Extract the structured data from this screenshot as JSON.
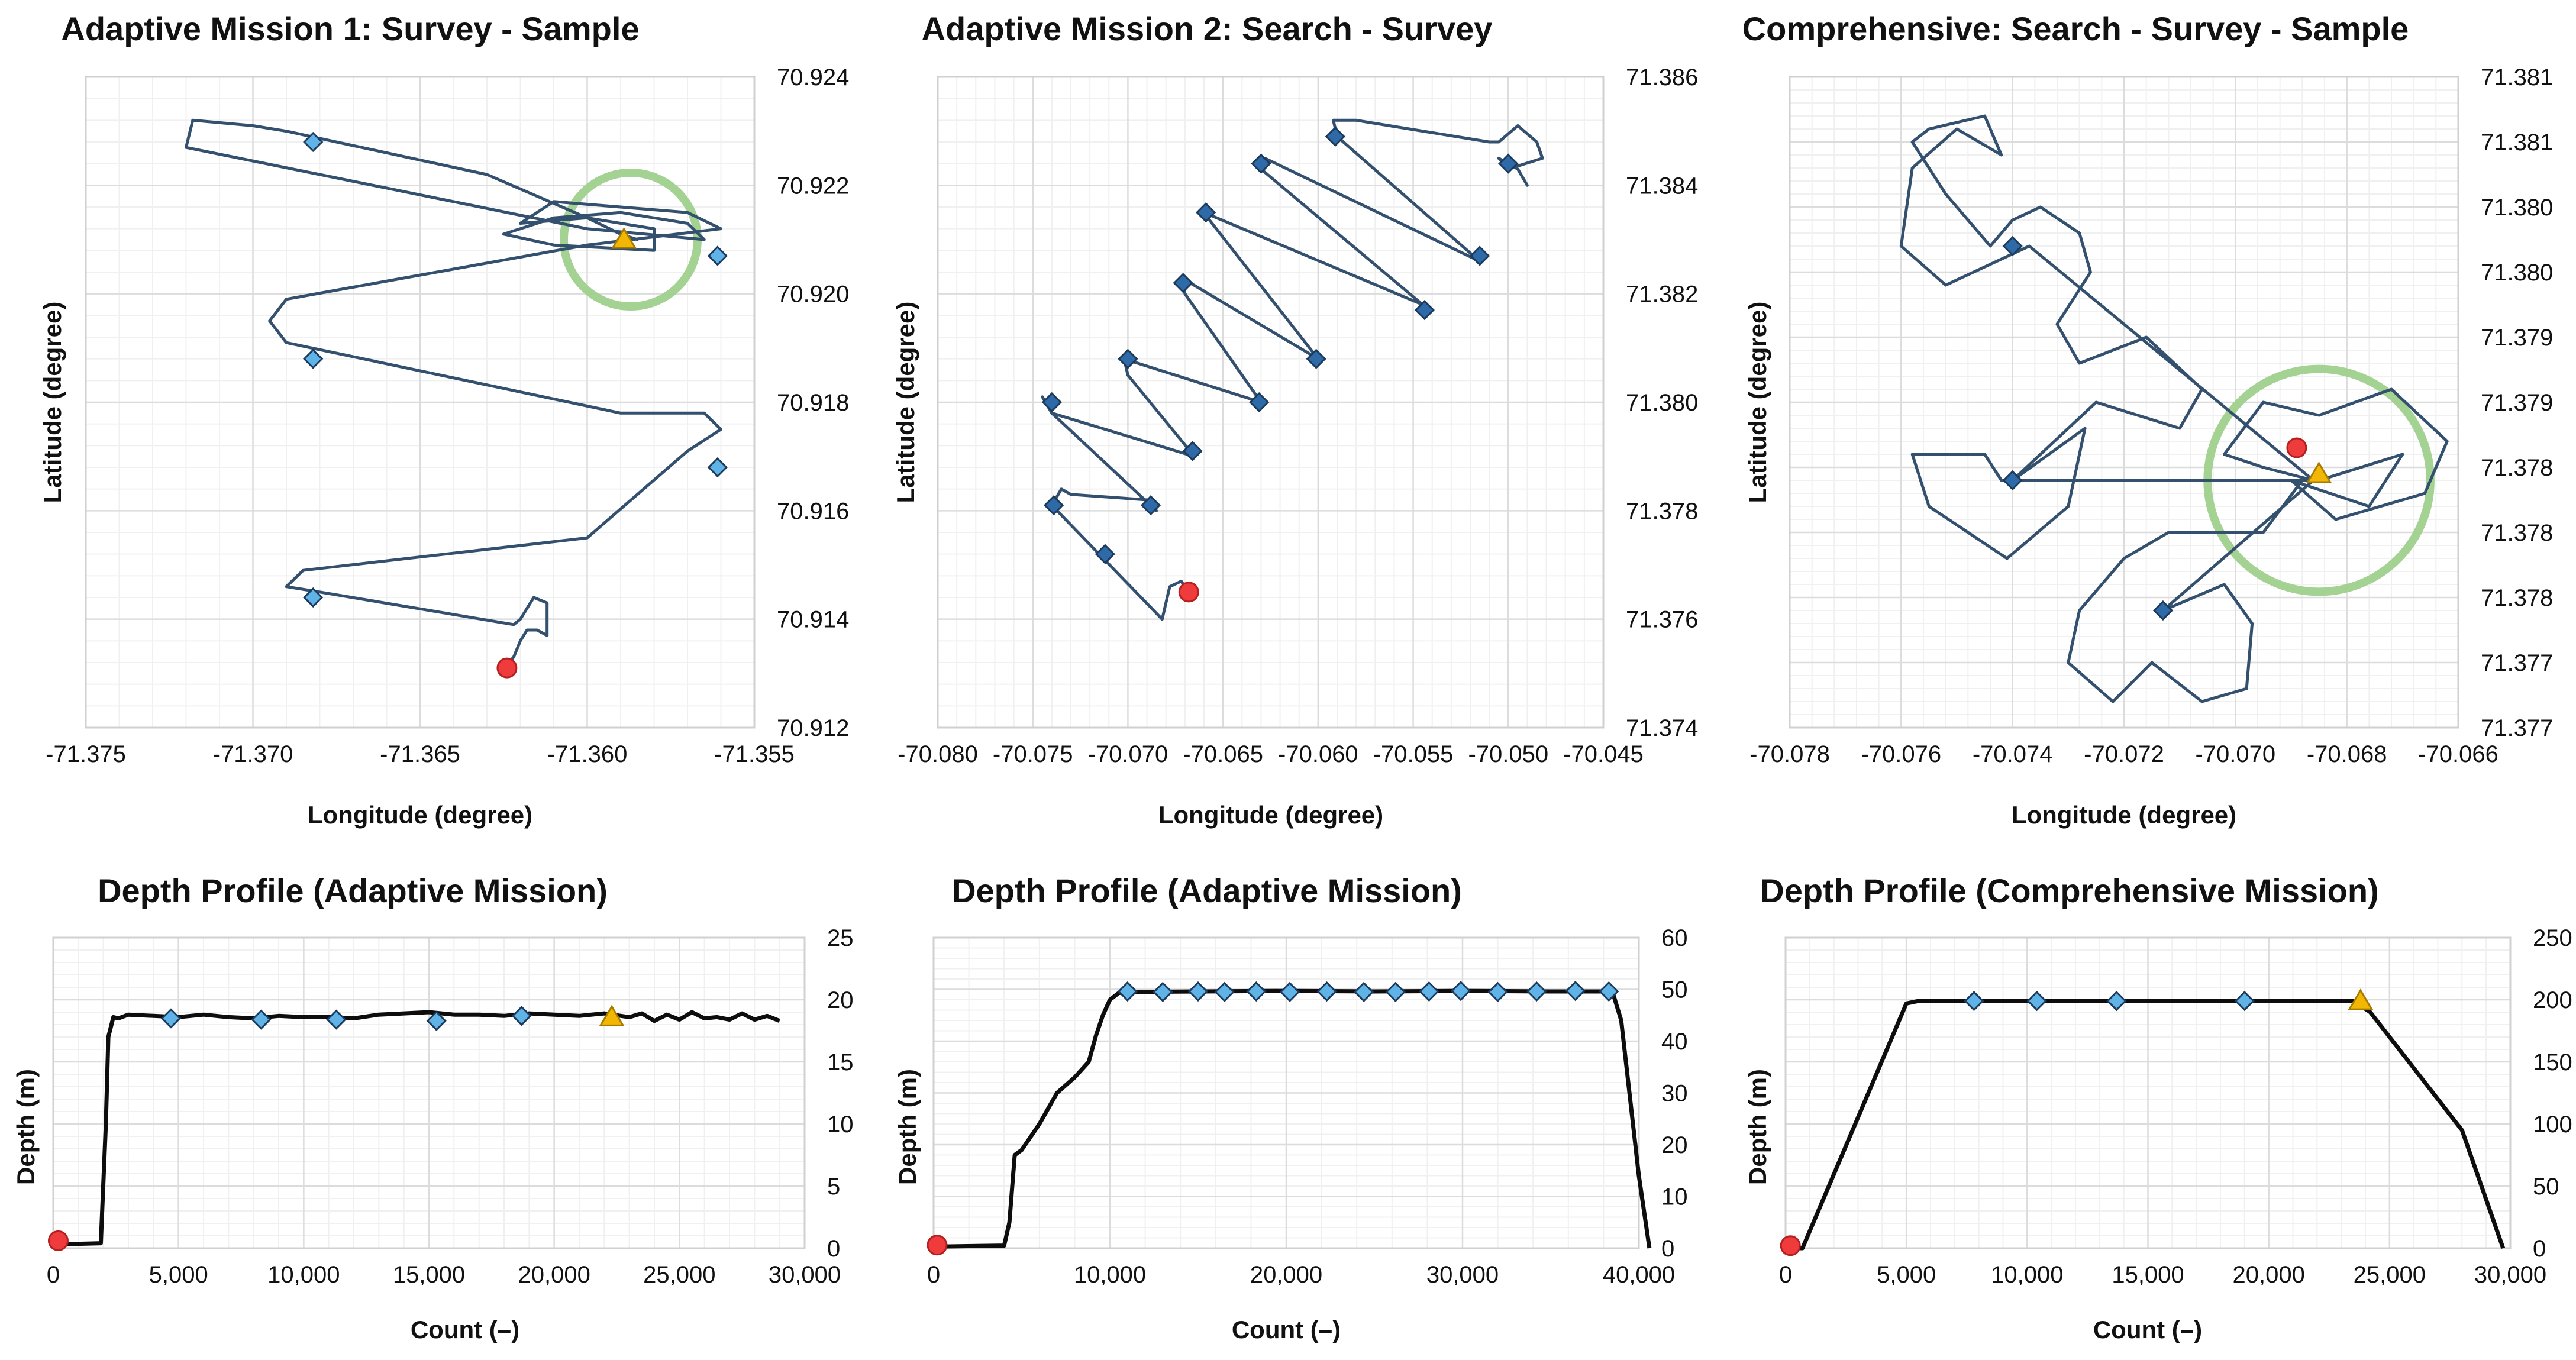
{
  "colors": {
    "track": "#34506f",
    "depth_line": "#0d0d0d",
    "waypoint_light": "#5fb3e6",
    "waypoint_dark": "#2e69a8",
    "waypoint_edge": "#1c3a5c",
    "start": "#ef3b3b",
    "end": "#f2b705",
    "highlight_circle": "#9fd08d",
    "grid": "#dcdcdc"
  },
  "chart_data": [
    {
      "id": "map1",
      "type": "line",
      "title": "Adaptive Mission 1: Survey - Sample",
      "xlabel": "Longitude (degree)",
      "ylabel": "Latitude (degree)",
      "xlim": [
        -71.375,
        -71.355
      ],
      "ylim": [
        70.912,
        70.924
      ],
      "x_ticks": [
        -71.375,
        -71.37,
        -71.365,
        -71.36,
        -71.355
      ],
      "x_tick_labels": [
        "-71.375",
        "-71.370",
        "-71.365",
        "-71.360",
        "-71.355"
      ],
      "y_ticks": [
        70.912,
        70.914,
        70.916,
        70.918,
        70.92,
        70.922,
        70.924
      ],
      "y_tick_labels": [
        "70.912",
        "70.914",
        "70.916",
        "70.918",
        "70.920",
        "70.922",
        "70.924"
      ],
      "grid": true,
      "marker_style": "light",
      "track": {
        "x": [
          -71.3625,
          -71.3622,
          -71.362,
          -71.3618,
          -71.3615,
          -71.3612,
          -71.3612,
          -71.3616,
          -71.362,
          -71.3622,
          -71.368,
          -71.369,
          -71.3685,
          -71.36,
          -71.357,
          -71.356,
          -71.3565,
          -71.359,
          -71.369,
          -71.3695,
          -71.369,
          -71.36,
          -71.356,
          -71.357,
          -71.361,
          -71.362,
          -71.36,
          -71.358,
          -71.358,
          -71.361,
          -71.3625,
          -71.361,
          -71.359,
          -71.357,
          -71.3565,
          -71.36,
          -71.372,
          -71.3718,
          -71.37,
          -71.369,
          -71.363,
          -71.36,
          -71.359,
          -71.3585
        ],
        "y": [
          70.9131,
          70.9133,
          70.9136,
          70.9138,
          70.9138,
          70.9137,
          70.9143,
          70.9144,
          70.914,
          70.9139,
          70.9145,
          70.9146,
          70.9149,
          70.9155,
          70.9171,
          70.9175,
          70.9178,
          70.9178,
          70.9191,
          70.9195,
          70.9199,
          70.9209,
          70.9212,
          70.9215,
          70.9217,
          70.9213,
          70.9214,
          70.9212,
          70.9208,
          70.9209,
          70.9211,
          70.9214,
          70.9215,
          70.9213,
          70.921,
          70.9212,
          70.9227,
          70.9232,
          70.9231,
          70.923,
          70.9222,
          70.9214,
          70.9211,
          70.921
        ]
      },
      "waypoints": {
        "x": [
          -71.3682,
          -71.3682,
          -71.3561,
          -71.3561,
          -71.3682
        ],
        "y": [
          70.9144,
          70.9188,
          70.9168,
          70.9207,
          70.9228
        ]
      },
      "start": {
        "x": -71.3624,
        "y": 70.9131
      },
      "end": {
        "x": -71.3589,
        "y": 70.921
      },
      "highlight": {
        "x": -71.3587,
        "y": 70.921,
        "r": 0.002
      }
    },
    {
      "id": "map2",
      "type": "line",
      "title": "Adaptive Mission 2: Search - Survey",
      "xlabel": "Longitude (degree)",
      "ylabel": "Latitude (degree)",
      "xlim": [
        -70.08,
        -70.045
      ],
      "ylim": [
        71.374,
        71.386
      ],
      "x_ticks": [
        -70.08,
        -70.075,
        -70.07,
        -70.065,
        -70.06,
        -70.055,
        -70.05,
        -70.045
      ],
      "x_tick_labels": [
        "-70.080",
        "-70.075",
        "-70.070",
        "-70.065",
        "-70.060",
        "-70.055",
        "-70.050",
        "-70.045"
      ],
      "y_ticks": [
        71.374,
        71.376,
        71.378,
        71.38,
        71.382,
        71.384,
        71.386
      ],
      "y_tick_labels": [
        "71.374",
        "71.376",
        "71.378",
        "71.380",
        "71.382",
        "71.384",
        "71.386"
      ],
      "grid": true,
      "marker_style": "dark",
      "track": {
        "x": [
          -70.0668,
          -70.0672,
          -70.0678,
          -70.0682,
          -70.074,
          -70.0735,
          -70.073,
          -70.069,
          -70.0685,
          -70.074,
          -70.0745,
          -70.074,
          -70.0665,
          -70.07,
          -70.0702,
          -70.063,
          -70.067,
          -70.0672,
          -70.06,
          -70.0658,
          -70.066,
          -70.0545,
          -70.063,
          -70.0628,
          -70.0515,
          -70.059,
          -70.0592,
          -70.058,
          -70.051,
          -70.0505,
          -70.0495,
          -70.0485,
          -70.0482,
          -70.05,
          -70.0505,
          -70.0495,
          -70.049
        ],
        "y": [
          71.3765,
          71.3767,
          71.3766,
          71.376,
          71.3781,
          71.3784,
          71.3783,
          71.3782,
          71.378,
          71.3798,
          71.3801,
          71.3798,
          71.379,
          71.3805,
          71.3808,
          71.38,
          71.382,
          71.3823,
          71.3808,
          71.3834,
          71.3835,
          71.3818,
          71.3843,
          71.3845,
          71.3826,
          71.3849,
          71.3852,
          71.3852,
          71.3848,
          71.3848,
          71.3851,
          71.3848,
          71.3845,
          71.3843,
          71.3845,
          71.3843,
          71.384
        ]
      },
      "waypoints": {
        "x": [
          -70.0712,
          -70.0739,
          -70.0688,
          -70.0666,
          -70.074,
          -70.0631,
          -70.07,
          -70.0601,
          -70.0671,
          -70.0544,
          -70.0659,
          -70.0515,
          -70.063,
          -70.05,
          -70.0591
        ],
        "y": [
          71.3772,
          71.3781,
          71.3781,
          71.3791,
          71.38,
          71.38,
          71.3808,
          71.3808,
          71.3822,
          71.3817,
          71.3835,
          71.3827,
          71.3844,
          71.3844,
          71.3849
        ]
      },
      "start": {
        "x": -70.0668,
        "y": 71.3765
      },
      "end": null,
      "highlight": null
    },
    {
      "id": "map3",
      "type": "line",
      "title": "Comprehensive: Search - Survey - Sample",
      "xlabel": "Longitude (degree)",
      "ylabel": "Latitude (degree)",
      "xlim": [
        -70.078,
        -70.066
      ],
      "ylim": [
        71.3765,
        71.3815
      ],
      "x_ticks": [
        -70.078,
        -70.076,
        -70.074,
        -70.072,
        -70.07,
        -70.068,
        -70.066
      ],
      "x_tick_labels": [
        "-70.078",
        "-70.076",
        "-70.074",
        "-70.072",
        "-70.070",
        "-70.068",
        "-70.066"
      ],
      "y_ticks": [
        71.3765,
        71.377,
        71.3775,
        71.378,
        71.3785,
        71.379,
        71.3795,
        71.38,
        71.3805,
        71.381,
        71.3815
      ],
      "y_tick_labels": [
        "71.377",
        "71.377",
        "71.378",
        "71.378",
        "71.378",
        "71.379",
        "71.379",
        "71.380",
        "71.380",
        "71.381",
        "71.381"
      ],
      "grid": true,
      "marker_style": "dark",
      "track": {
        "x": [
          -70.0688,
          -70.0695,
          -70.0712,
          -70.072,
          -70.0728,
          -70.073,
          -70.0722,
          -70.0715,
          -70.0706,
          -70.0698,
          -70.0697,
          -70.0702,
          -70.0713,
          -70.0686,
          -70.0737,
          -70.0752,
          -70.076,
          -70.0758,
          -70.075,
          -70.0742,
          -70.0745,
          -70.0755,
          -70.0758,
          -70.0752,
          -70.0744,
          -70.074,
          -70.0735,
          -70.0728,
          -70.0726,
          -70.0732,
          -70.0728,
          -70.0716,
          -70.0706,
          -70.071,
          -70.0725,
          -70.074,
          -70.0685,
          -70.067,
          -70.0676,
          -70.069,
          -70.0682,
          -70.0666,
          -70.0662,
          -70.0672,
          -70.0685,
          -70.0695,
          -70.0702,
          -70.0695,
          -70.0686,
          -70.074,
          -70.0727,
          -70.073,
          -70.0741,
          -70.0755,
          -70.0758,
          -70.0745,
          -70.0742,
          -70.0687
        ],
        "y": [
          71.3784,
          71.378,
          71.378,
          71.3778,
          71.3774,
          71.377,
          71.3767,
          71.377,
          71.3767,
          71.3768,
          71.3773,
          71.3776,
          71.3774,
          71.3784,
          71.3802,
          71.3799,
          71.3802,
          71.3808,
          71.3811,
          71.3809,
          71.3812,
          71.3811,
          71.381,
          71.3806,
          71.3802,
          71.3804,
          71.3805,
          71.3803,
          71.38,
          71.3796,
          71.3793,
          71.3795,
          71.3791,
          71.3788,
          71.379,
          71.3784,
          71.3784,
          71.3786,
          71.3782,
          71.3784,
          71.3781,
          71.3783,
          71.3787,
          71.3791,
          71.3789,
          71.379,
          71.3786,
          71.3785,
          71.3784,
          71.3784,
          71.3788,
          71.3782,
          71.3778,
          71.3782,
          71.3786,
          71.3786,
          71.3784,
          71.3784
        ]
      },
      "waypoints": {
        "x": [
          -70.074,
          -70.074,
          -70.0713
        ],
        "y": [
          71.3802,
          71.3784,
          71.3774
        ]
      },
      "start": {
        "x": -70.0689,
        "y": 71.37865
      },
      "end": {
        "x": -70.0685,
        "y": 71.37845
      },
      "highlight": {
        "x": -70.0685,
        "y": 71.3784,
        "r": 0.002
      }
    },
    {
      "id": "depth1",
      "type": "line",
      "title": "Depth Profile (Adaptive Mission)",
      "xlabel": "Count (–)",
      "ylabel": "Depth (m)",
      "xlim": [
        0,
        30000
      ],
      "ylim": [
        0,
        25
      ],
      "x_ticks": [
        0,
        5000,
        10000,
        15000,
        20000,
        25000,
        30000
      ],
      "x_tick_labels": [
        "0",
        "5,000",
        "10,000",
        "15,000",
        "20,000",
        "25,000",
        "30,000"
      ],
      "y_ticks": [
        0,
        5,
        10,
        15,
        20,
        25
      ],
      "y_tick_labels": [
        "0",
        "5",
        "10",
        "15",
        "20",
        "25"
      ],
      "grid": true,
      "marker_style": "light",
      "series": [
        {
          "name": "Depth",
          "x": [
            0,
            1900,
            2100,
            2200,
            2400,
            2600,
            3000,
            4000,
            5000,
            6000,
            7000,
            8000,
            9000,
            10000,
            11000,
            12000,
            13000,
            14000,
            15000,
            16000,
            17000,
            18000,
            19000,
            20000,
            21000,
            22000,
            23000,
            23500,
            24000,
            24500,
            25000,
            25500,
            26000,
            26500,
            27000,
            27500,
            28000,
            28500,
            29000
          ],
          "y": [
            0.3,
            0.4,
            10,
            17,
            18.6,
            18.5,
            18.8,
            18.7,
            18.6,
            18.8,
            18.6,
            18.5,
            18.7,
            18.6,
            18.6,
            18.5,
            18.8,
            18.9,
            19,
            18.8,
            18.8,
            18.7,
            18.9,
            18.8,
            18.7,
            18.9,
            18.6,
            18.9,
            18.3,
            18.8,
            18.4,
            19,
            18.5,
            18.6,
            18.4,
            18.9,
            18.4,
            18.7,
            18.3
          ]
        }
      ],
      "waypoints": {
        "x": [
          4700,
          8300,
          11300,
          15300,
          18700
        ],
        "y": [
          18.5,
          18.4,
          18.4,
          18.3,
          18.7
        ]
      },
      "start": {
        "x": 200,
        "y": 0.6
      },
      "end": {
        "x": 22300,
        "y": 18.6
      }
    },
    {
      "id": "depth2",
      "type": "line",
      "title": "Depth Profile (Adaptive Mission)",
      "xlabel": "Count (–)",
      "ylabel": "Depth (m)",
      "xlim": [
        0,
        40000
      ],
      "ylim": [
        0,
        60
      ],
      "x_ticks": [
        0,
        10000,
        20000,
        30000,
        40000
      ],
      "x_tick_labels": [
        "0",
        "10,000",
        "20,000",
        "30,000",
        "40,000"
      ],
      "y_ticks": [
        0,
        10,
        20,
        30,
        40,
        50,
        60
      ],
      "y_tick_labels": [
        "0",
        "10",
        "20",
        "30",
        "40",
        "50",
        "60"
      ],
      "grid": true,
      "marker_style": "light",
      "series": [
        {
          "name": "Depth",
          "x": [
            0,
            4000,
            4300,
            4600,
            5000,
            6000,
            7000,
            8000,
            8800,
            9200,
            9600,
            10000,
            10500,
            11000,
            15000,
            20000,
            25000,
            30000,
            35000,
            38500,
            39000,
            40000,
            40600
          ],
          "y": [
            0.3,
            0.5,
            5,
            18,
            19,
            24,
            30,
            33,
            36,
            41,
            45,
            48,
            49.3,
            49.5,
            49.6,
            49.7,
            49.6,
            49.7,
            49.6,
            49.6,
            44,
            14,
            0
          ]
        }
      ],
      "waypoints": {
        "x": [
          11000,
          13000,
          15000,
          16500,
          18300,
          20200,
          22300,
          24400,
          26200,
          28100,
          29900,
          32000,
          34200,
          36400,
          38300
        ],
        "y": [
          49.6,
          49.5,
          49.6,
          49.5,
          49.6,
          49.5,
          49.6,
          49.5,
          49.5,
          49.6,
          49.7,
          49.5,
          49.6,
          49.7,
          49.6
        ]
      },
      "start": {
        "x": 200,
        "y": 0.6
      },
      "end": null
    },
    {
      "id": "depth3",
      "type": "line",
      "title": "Depth Profile (Comprehensive Mission)",
      "xlabel": "Count (–)",
      "ylabel": "Depth (m)",
      "xlim": [
        0,
        30000
      ],
      "ylim": [
        0,
        250
      ],
      "x_ticks": [
        0,
        5000,
        10000,
        15000,
        20000,
        25000,
        30000
      ],
      "x_tick_labels": [
        "0",
        "5,000",
        "10,000",
        "15,000",
        "20,000",
        "25,000",
        "30,000"
      ],
      "y_ticks": [
        0,
        50,
        100,
        150,
        200,
        250
      ],
      "y_tick_labels": [
        "0",
        "50",
        "100",
        "150",
        "200",
        "250"
      ],
      "grid": true,
      "marker_style": "light",
      "series": [
        {
          "name": "Depth",
          "x": [
            200,
            700,
            5000,
            5500,
            23500,
            24200,
            26000,
            28000,
            29700
          ],
          "y": [
            0,
            0,
            197,
            199,
            199,
            190,
            145,
            95,
            0
          ]
        }
      ],
      "waypoints": {
        "x": [
          7800,
          10400,
          13700,
          19000
        ],
        "y": [
          199,
          199,
          199,
          199
        ]
      },
      "start": {
        "x": 200,
        "y": 2
      },
      "end": {
        "x": 23800,
        "y": 199
      }
    }
  ]
}
